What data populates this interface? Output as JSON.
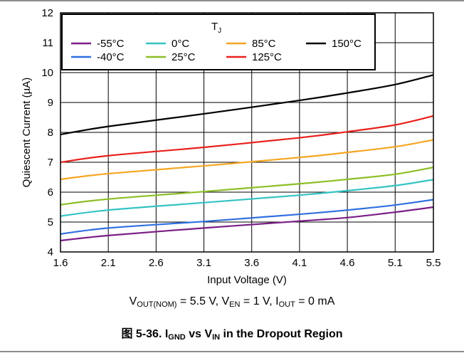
{
  "chart_data": {
    "type": "line",
    "xlabel": "Input Voltage (V)",
    "ylabel": "Quiescent Current (µA)",
    "xlim": [
      1.6,
      5.5
    ],
    "ylim": [
      4,
      12
    ],
    "x_ticks": [
      "1.6",
      "2.1",
      "2.6",
      "3.1",
      "3.6",
      "4.1",
      "4.6",
      "5.1",
      "5.5"
    ],
    "y_ticks": [
      "4",
      "5",
      "6",
      "7",
      "8",
      "9",
      "10",
      "11",
      "12"
    ],
    "grid": true,
    "legend": {
      "title_main": "T",
      "title_sub": "J",
      "placement": "top-left",
      "entries": [
        "-55°C",
        "0°C",
        "85°C",
        "150°C",
        "-40°C",
        "25°C",
        "125°C"
      ]
    },
    "series": [
      {
        "name": "-55°C",
        "color": "#7b1f86",
        "points": [
          [
            1.6,
            4.38
          ],
          [
            2.1,
            4.55
          ],
          [
            3.1,
            4.8
          ],
          [
            4.1,
            5.03
          ],
          [
            4.6,
            5.15
          ],
          [
            5.1,
            5.33
          ],
          [
            5.5,
            5.5
          ]
        ]
      },
      {
        "name": "-40°C",
        "color": "#2f6fe0",
        "points": [
          [
            1.6,
            4.6
          ],
          [
            2.1,
            4.8
          ],
          [
            3.1,
            5.02
          ],
          [
            4.1,
            5.26
          ],
          [
            4.6,
            5.4
          ],
          [
            5.1,
            5.57
          ],
          [
            5.5,
            5.75
          ]
        ]
      },
      {
        "name": "0°C",
        "color": "#35c3c3",
        "points": [
          [
            1.6,
            5.2
          ],
          [
            2.1,
            5.4
          ],
          [
            3.1,
            5.65
          ],
          [
            4.1,
            5.9
          ],
          [
            4.6,
            6.05
          ],
          [
            5.1,
            6.22
          ],
          [
            5.5,
            6.42
          ]
        ]
      },
      {
        "name": "25°C",
        "color": "#8cbf26",
        "points": [
          [
            1.6,
            5.58
          ],
          [
            2.1,
            5.77
          ],
          [
            3.1,
            6.02
          ],
          [
            4.1,
            6.28
          ],
          [
            4.6,
            6.43
          ],
          [
            5.1,
            6.6
          ],
          [
            5.5,
            6.83
          ]
        ]
      },
      {
        "name": "85°C",
        "color": "#f5a623",
        "points": [
          [
            1.6,
            6.43
          ],
          [
            2.1,
            6.62
          ],
          [
            3.1,
            6.88
          ],
          [
            4.1,
            7.16
          ],
          [
            4.6,
            7.33
          ],
          [
            5.1,
            7.52
          ],
          [
            5.5,
            7.75
          ]
        ]
      },
      {
        "name": "125°C",
        "color": "#e8211c",
        "points": [
          [
            1.6,
            7.0
          ],
          [
            2.1,
            7.22
          ],
          [
            3.1,
            7.5
          ],
          [
            4.1,
            7.82
          ],
          [
            4.6,
            8.02
          ],
          [
            5.1,
            8.25
          ],
          [
            5.5,
            8.55
          ]
        ]
      },
      {
        "name": "150°C",
        "color": "#000000",
        "points": [
          [
            1.6,
            7.93
          ],
          [
            2.1,
            8.2
          ],
          [
            3.1,
            8.62
          ],
          [
            4.1,
            9.07
          ],
          [
            4.6,
            9.32
          ],
          [
            5.1,
            9.6
          ],
          [
            5.5,
            9.92
          ]
        ]
      }
    ]
  },
  "conditions": {
    "v1": "V",
    "v1_sub": "OUT(NOM)",
    "v1_rest": " = 5.5 V, ",
    "v2": "V",
    "v2_sub": "EN",
    "v2_rest": " = 1 V, ",
    "v3": "I",
    "v3_sub": "OUT",
    "v3_rest": " = 0 mA"
  },
  "caption": {
    "prefix": "图 5-36. ",
    "i": "I",
    "i_sub": "GND",
    "mid": " vs ",
    "v": "V",
    "v_sub": "IN",
    "rest": " in the Dropout Region"
  }
}
